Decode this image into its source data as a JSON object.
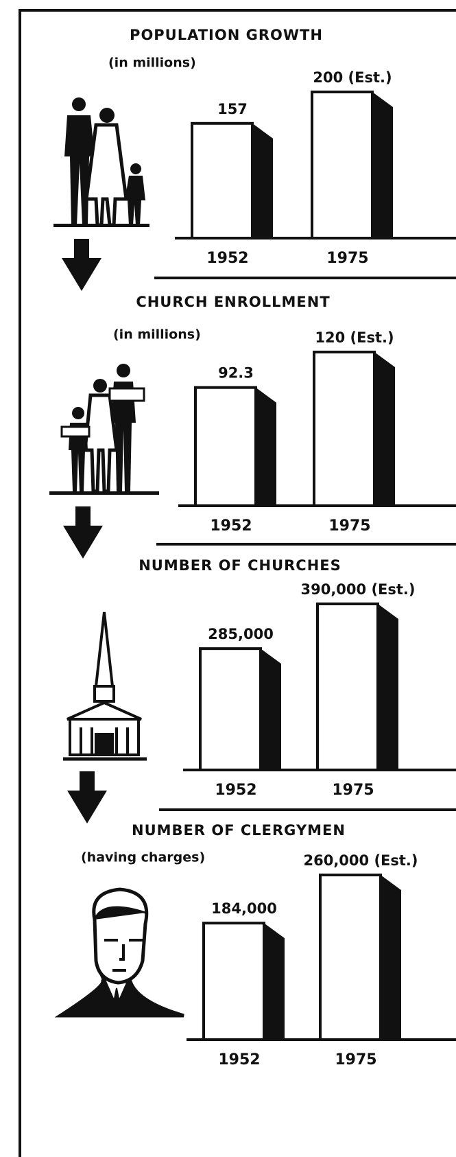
{
  "chart_data": [
    {
      "type": "bar",
      "title": "POPULATION GROWTH",
      "subtitle": "(in millions)",
      "categories": [
        "1952",
        "1975"
      ],
      "values": [
        157,
        200
      ],
      "value_labels": [
        "157",
        "200 (Est.)"
      ]
    },
    {
      "type": "bar",
      "title": "CHURCH ENROLLMENT",
      "subtitle": "(in millions)",
      "categories": [
        "1952",
        "1975"
      ],
      "values": [
        92.3,
        120
      ],
      "value_labels": [
        "92.3",
        "120 (Est.)"
      ]
    },
    {
      "type": "bar",
      "title": "NUMBER OF CHURCHES",
      "categories": [
        "1952",
        "1975"
      ],
      "values": [
        285000,
        390000
      ],
      "value_labels": [
        "285,000",
        "390,000 (Est.)"
      ]
    },
    {
      "type": "bar",
      "title": "NUMBER OF CLERGYMEN",
      "subtitle": "(having charges)",
      "categories": [
        "1952",
        "1975"
      ],
      "values": [
        184000,
        260000
      ],
      "value_labels": [
        "184,000",
        "260,000 (Est.)"
      ]
    }
  ]
}
